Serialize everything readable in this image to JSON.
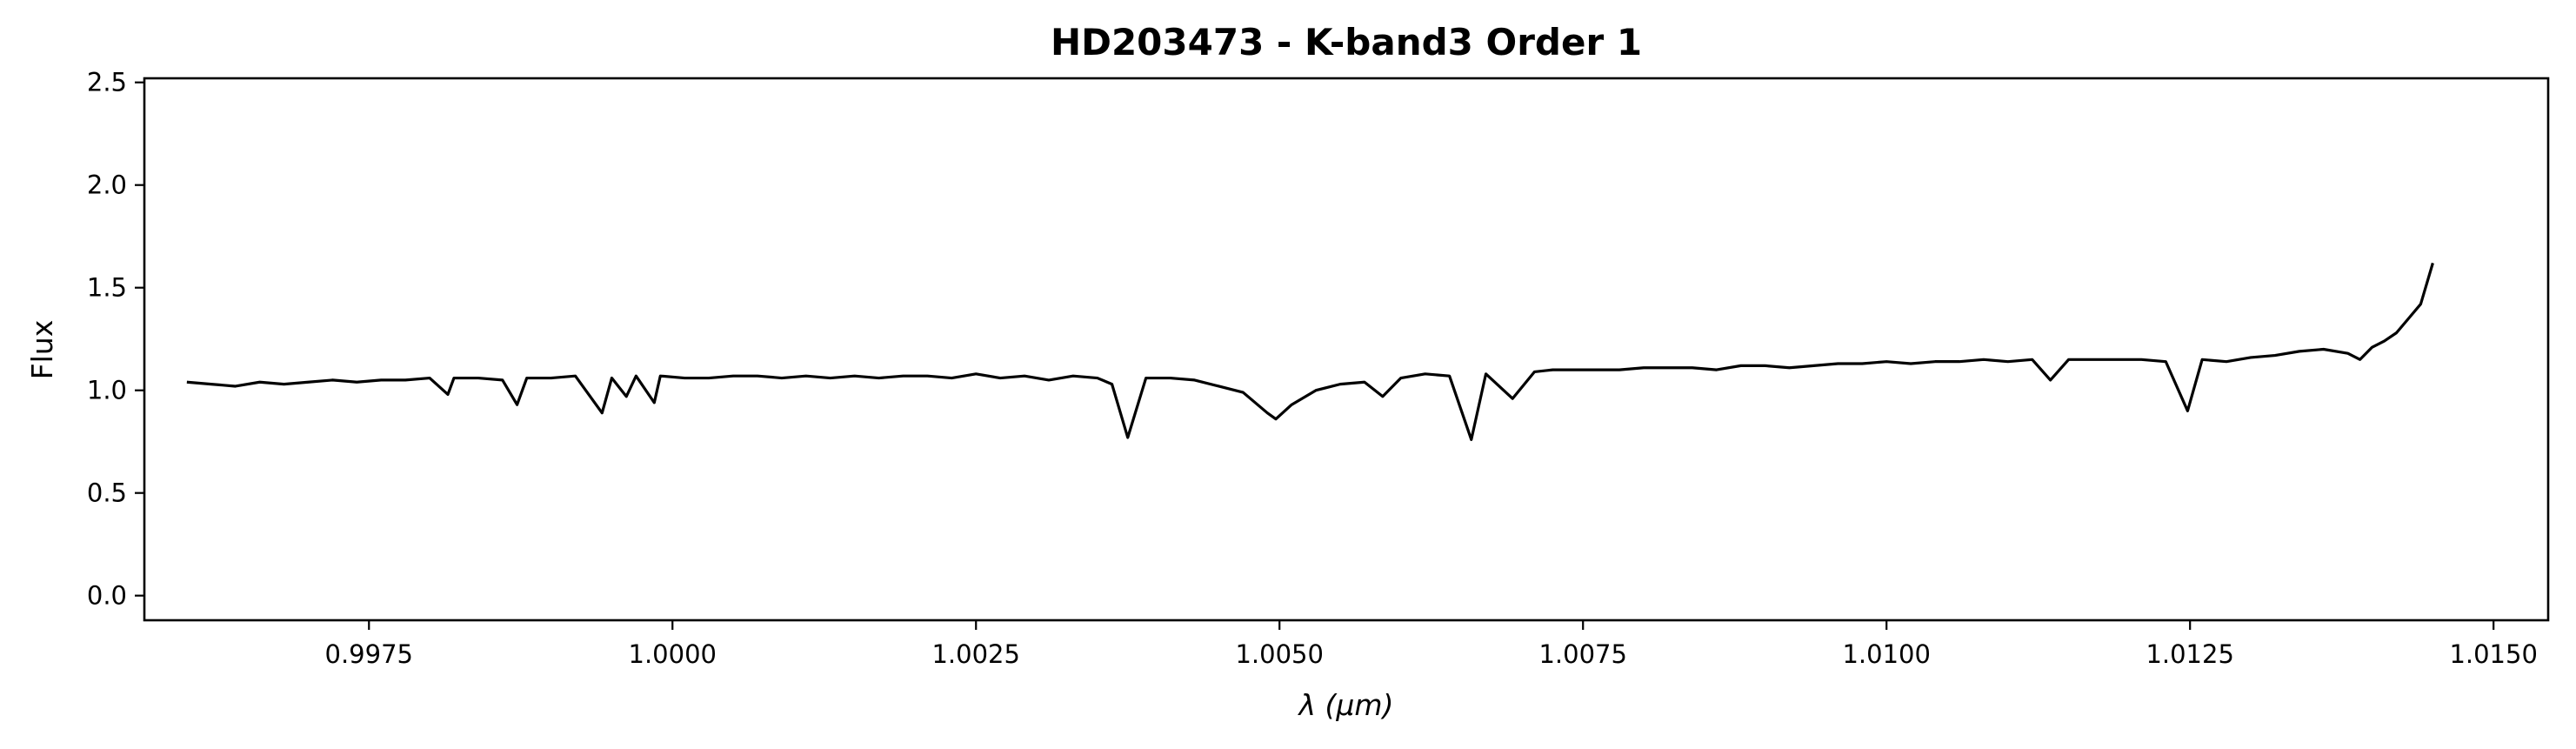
{
  "chart_data": {
    "type": "line",
    "title": "HD203473 - K-band3 Order 1",
    "xlabel": "λ (μm)",
    "ylabel": "Flux",
    "xlim": [
      0.99565,
      1.01545
    ],
    "ylim": [
      -0.12,
      2.52
    ],
    "xticks": [
      0.9975,
      1.0,
      1.0025,
      1.005,
      1.0075,
      1.01,
      1.0125,
      1.015
    ],
    "xtick_labels": [
      "0.9975",
      "1.0000",
      "1.0025",
      "1.0050",
      "1.0075",
      "1.0100",
      "1.0125",
      "1.0150"
    ],
    "yticks": [
      0.0,
      0.5,
      1.0,
      1.5,
      2.0,
      2.5
    ],
    "ytick_labels": [
      "0.0",
      "0.5",
      "1.0",
      "1.5",
      "2.0",
      "2.5"
    ],
    "grid": false,
    "line_color": "#000000",
    "series": [
      {
        "x": [
          0.996,
          0.9962,
          0.9964,
          0.9966,
          0.9968,
          0.997,
          0.9972,
          0.9974,
          0.9976,
          0.9978,
          0.998,
          0.99815,
          0.9982,
          0.9984,
          0.9986,
          0.99872,
          0.9988,
          0.999,
          0.9992,
          0.99942,
          0.9995,
          0.99962,
          0.9997,
          0.99985,
          0.9999,
          1.0001,
          1.0003,
          1.0005,
          1.0007,
          1.0009,
          1.0011,
          1.0013,
          1.0015,
          1.0017,
          1.0019,
          1.0021,
          1.0023,
          1.0025,
          1.0027,
          1.0029,
          1.0031,
          1.0033,
          1.0035,
          1.00362,
          1.00375,
          1.0039,
          1.0041,
          1.0043,
          1.0045,
          1.0047,
          1.0049,
          1.00497,
          1.0051,
          1.0053,
          1.0055,
          1.0057,
          1.00585,
          1.006,
          1.0062,
          1.0064,
          1.00658,
          1.0067,
          1.00692,
          1.0071,
          1.00725,
          1.0074,
          1.0076,
          1.0078,
          1.008,
          1.0082,
          1.0084,
          1.0086,
          1.0088,
          1.009,
          1.0092,
          1.0094,
          1.0096,
          1.0098,
          1.01,
          1.0102,
          1.0104,
          1.0106,
          1.0108,
          1.011,
          1.0112,
          1.01135,
          1.0115,
          1.0117,
          1.0119,
          1.0121,
          1.0123,
          1.01248,
          1.0126,
          1.0128,
          1.013,
          1.0132,
          1.0134,
          1.0136,
          1.0138,
          1.0139,
          1.014,
          1.0141,
          1.0142,
          1.0143,
          1.0144,
          1.0145
        ],
        "y": [
          1.04,
          1.03,
          1.02,
          1.04,
          1.03,
          1.04,
          1.05,
          1.04,
          1.05,
          1.05,
          1.06,
          0.98,
          1.06,
          1.06,
          1.05,
          0.93,
          1.06,
          1.06,
          1.07,
          0.89,
          1.06,
          0.97,
          1.07,
          0.94,
          1.07,
          1.06,
          1.06,
          1.07,
          1.07,
          1.06,
          1.07,
          1.06,
          1.07,
          1.06,
          1.07,
          1.07,
          1.06,
          1.08,
          1.06,
          1.07,
          1.05,
          1.07,
          1.06,
          1.03,
          0.77,
          1.06,
          1.06,
          1.05,
          1.02,
          0.99,
          0.89,
          0.86,
          0.93,
          1.0,
          1.03,
          1.04,
          0.97,
          1.06,
          1.08,
          1.07,
          0.76,
          1.08,
          0.96,
          1.09,
          1.1,
          1.1,
          1.1,
          1.1,
          1.11,
          1.11,
          1.11,
          1.1,
          1.12,
          1.12,
          1.11,
          1.12,
          1.13,
          1.13,
          1.14,
          1.13,
          1.14,
          1.14,
          1.15,
          1.14,
          1.15,
          1.05,
          1.15,
          1.15,
          1.15,
          1.15,
          1.14,
          0.9,
          1.15,
          1.14,
          1.16,
          1.17,
          1.19,
          1.2,
          1.18,
          1.15,
          1.21,
          1.24,
          1.28,
          1.35,
          1.42,
          1.62
        ]
      }
    ]
  }
}
